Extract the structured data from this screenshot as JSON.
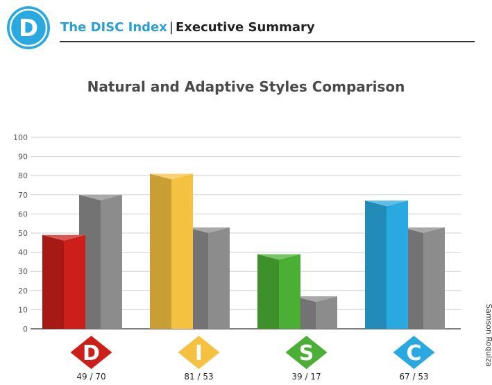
{
  "header": {
    "brand": "The DISC Index",
    "separator": "|",
    "subtitle": "Executive Summary",
    "logo_letter": "D",
    "brand_color": "#2a9fd6"
  },
  "credit": "Samson Roquiza",
  "chart_data": {
    "type": "bar",
    "title": "Natural and Adaptive Styles Comparison",
    "categories": [
      "D",
      "I",
      "S",
      "C"
    ],
    "category_colors": [
      "#cc1f1a",
      "#f5c141",
      "#4caf35",
      "#2aa9e0"
    ],
    "series": [
      {
        "values": [
          49,
          81,
          39,
          67
        ]
      },
      {
        "values": [
          70,
          53,
          17,
          53
        ],
        "color": "#8c8c8c"
      }
    ],
    "value_labels": [
      "49 / 70",
      "81 / 53",
      "39 / 17",
      "67 / 53"
    ],
    "ylim": [
      0,
      100
    ],
    "yticks": [
      "0",
      "10",
      "20",
      "30",
      "40",
      "50",
      "60",
      "70",
      "80",
      "90",
      "100"
    ],
    "grid": true,
    "xlabel": "",
    "ylabel": ""
  }
}
